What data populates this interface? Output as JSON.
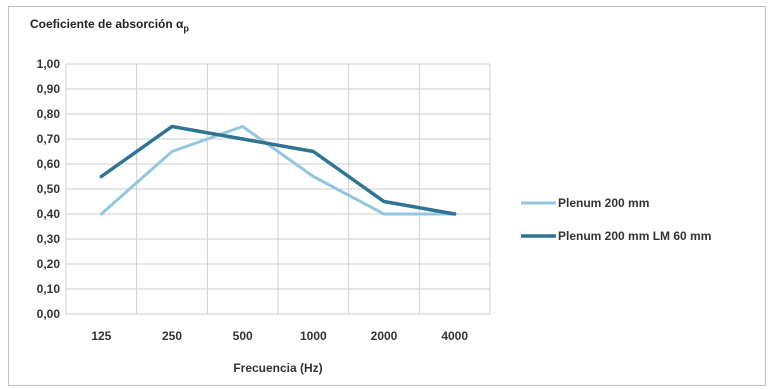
{
  "chart_data": {
    "type": "line",
    "title": "Coeficiente de absorción α",
    "title_subscript": "p",
    "xlabel": "Frecuencia (Hz)",
    "ylabel": "",
    "categories": [
      "125",
      "250",
      "500",
      "1000",
      "2000",
      "4000"
    ],
    "ylim": [
      0,
      1
    ],
    "yticks": [
      "0,00",
      "0,10",
      "0,20",
      "0,30",
      "0,40",
      "0,50",
      "0,60",
      "0,70",
      "0,80",
      "0,90",
      "1,00"
    ],
    "grid": true,
    "legend_position": "right",
    "series": [
      {
        "name": "Plenum 200 mm",
        "color": "#92c7de",
        "values": [
          0.4,
          0.65,
          0.75,
          0.55,
          0.4,
          0.4
        ]
      },
      {
        "name": "Plenum 200 mm LM 60 mm",
        "color": "#2f7591",
        "values": [
          0.55,
          0.75,
          0.7,
          0.65,
          0.45,
          0.4
        ]
      }
    ]
  }
}
